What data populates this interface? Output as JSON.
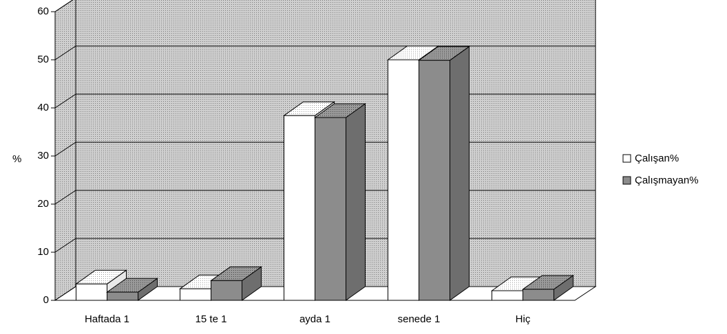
{
  "chart_data": {
    "type": "bar3d",
    "ylabel": "%",
    "categories": [
      "Haftada 1",
      "15 te 1",
      "ayda 1",
      "senede 1",
      "Hiç"
    ],
    "series": [
      {
        "name": "Çalışan%",
        "color": "#ffffff",
        "values": [
          3.4,
          2.4,
          38.4,
          50,
          2
        ]
      },
      {
        "name": "Çalışmayan%",
        "color": "#8c8c8c",
        "values": [
          1.7,
          4.1,
          38,
          49.9,
          2.3
        ]
      }
    ],
    "ylim": [
      0,
      60
    ],
    "yticks": [
      0,
      10,
      20,
      30,
      40,
      50,
      60
    ],
    "grid": true,
    "legend": "right"
  }
}
